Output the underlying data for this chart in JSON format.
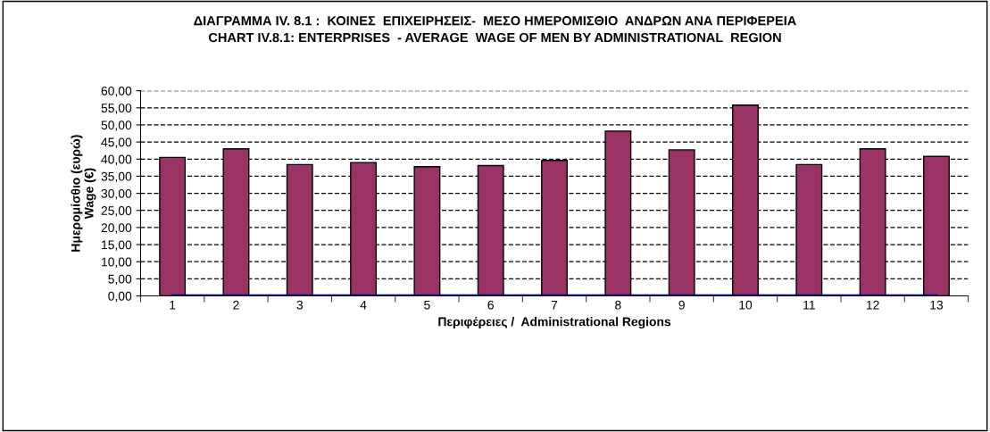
{
  "chart_data": {
    "type": "bar",
    "title": "ΔΙΑΓΡΑΜΜΑ IV. 8.1 :  ΚΟΙΝΕΣ  ΕΠΙΧΕΙΡΗΣΕΙΣ-  ΜΕΣΟ ΗΜΕΡΟΜΙΣΘΙΟ  ΑΝΔΡΩΝ ΑΝΑ ΠΕΡΙΦΕΡΕΙΑ\nCHART IV.8.1: ENTERPRISES  - AVERAGE  WAGE OF MEN BY ADMINISTRATIONAL  REGION",
    "xlabel": "Περιφέρειες /  Administrational Regions",
    "ylabel": "Ημερομίσθιο (ευρώ)\nWage (€)",
    "categories": [
      "1",
      "2",
      "3",
      "4",
      "5",
      "6",
      "7",
      "8",
      "9",
      "10",
      "11",
      "12",
      "13"
    ],
    "series": [
      {
        "color": "#993366",
        "values": [
          40.5,
          43.0,
          38.4,
          39.0,
          37.8,
          38.1,
          39.6,
          48.2,
          42.7,
          55.8,
          38.4,
          43.0,
          40.8
        ]
      },
      {
        "type": "line",
        "color": "#000080",
        "values": [
          0,
          0,
          0,
          0,
          0,
          0,
          0,
          0,
          0,
          0,
          0,
          0,
          0
        ]
      }
    ],
    "ylim": [
      0,
      60
    ],
    "yticks": [
      {
        "value": 0,
        "label": "0,00"
      },
      {
        "value": 5,
        "label": "5,00"
      },
      {
        "value": 10,
        "label": "10,00"
      },
      {
        "value": 15,
        "label": "15,00"
      },
      {
        "value": 20,
        "label": "20,00"
      },
      {
        "value": 25,
        "label": "25,00"
      },
      {
        "value": 30,
        "label": "30,00"
      },
      {
        "value": 35,
        "label": "35,00"
      },
      {
        "value": 40,
        "label": "40,00"
      },
      {
        "value": 45,
        "label": "45,00"
      },
      {
        "value": 50,
        "label": "50,00"
      },
      {
        "value": 55,
        "label": "55,00"
      },
      {
        "value": 60,
        "label": "60,00"
      }
    ],
    "grid": "y",
    "legend": false
  }
}
